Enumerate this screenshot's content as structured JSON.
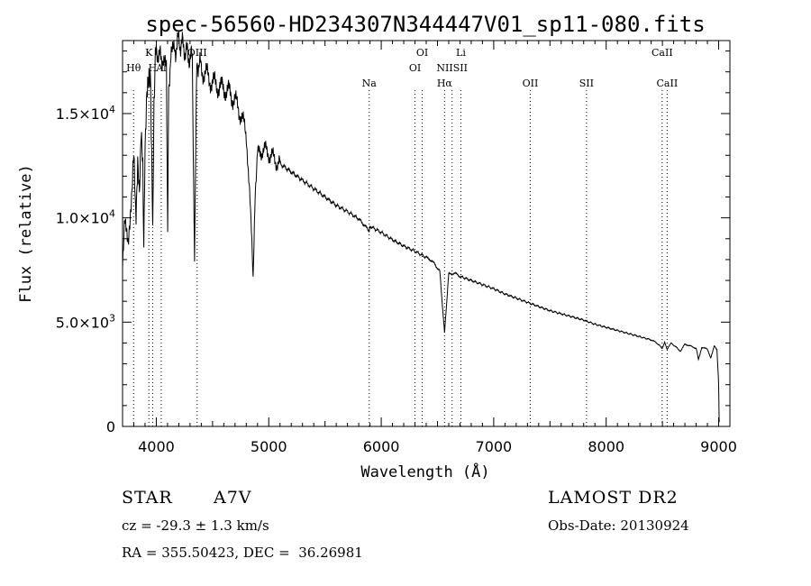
{
  "chart_data": {
    "type": "line",
    "title": "spec-56560-HD234307N344447V01_sp11-080.fits",
    "xlabel": "Wavelength (Å)",
    "ylabel": "Flux (relative)",
    "xlim": [
      3700,
      9100
    ],
    "ylim": [
      0,
      18500
    ],
    "xticks": [
      4000,
      5000,
      6000,
      7000,
      8000,
      9000
    ],
    "xtick_labels": [
      "4000",
      "5000",
      "6000",
      "7000",
      "8000",
      "9000"
    ],
    "yticks": [
      0,
      5000,
      10000,
      15000
    ],
    "ytick_labels": [
      {
        "mantissa": "0",
        "exp": ""
      },
      {
        "mantissa": "5.0×10",
        "exp": "3"
      },
      {
        "mantissa": "1.0×10",
        "exp": "4"
      },
      {
        "mantissa": "1.5×10",
        "exp": "4"
      }
    ],
    "grid": false,
    "series": [
      {
        "values": [
          [
            3700,
            8200
          ],
          [
            3720,
            9500
          ],
          [
            3750,
            8800
          ],
          [
            3780,
            11500
          ],
          [
            3800,
            12500
          ],
          [
            3820,
            10500
          ],
          [
            3835,
            13000
          ],
          [
            3850,
            11000
          ],
          [
            3865,
            13500
          ],
          [
            3880,
            12000
          ],
          [
            3889,
            9000
          ],
          [
            3900,
            14000
          ],
          [
            3920,
            15500
          ],
          [
            3935,
            16500
          ],
          [
            3950,
            17000
          ],
          [
            3955,
            14000
          ],
          [
            3968,
            9500
          ],
          [
            3980,
            16000
          ],
          [
            4000,
            17800
          ],
          [
            4020,
            18000
          ],
          [
            4040,
            17500
          ],
          [
            4060,
            17800
          ],
          [
            4075,
            17600
          ],
          [
            4090,
            17000
          ],
          [
            4101,
            9000
          ],
          [
            4110,
            16500
          ],
          [
            4130,
            17500
          ],
          [
            4160,
            18000
          ],
          [
            4200,
            18500
          ],
          [
            4240,
            18200
          ],
          [
            4280,
            17800
          ],
          [
            4320,
            17600
          ],
          [
            4340,
            8000
          ],
          [
            4360,
            17500
          ],
          [
            4400,
            17200
          ],
          [
            4450,
            16800
          ],
          [
            4500,
            16500
          ],
          [
            4550,
            16300
          ],
          [
            4600,
            16200
          ],
          [
            4650,
            16000
          ],
          [
            4700,
            15600
          ],
          [
            4750,
            15000
          ],
          [
            4800,
            14000
          ],
          [
            4830,
            11500
          ],
          [
            4861,
            7000
          ],
          [
            4880,
            11500
          ],
          [
            4900,
            13000
          ],
          [
            4950,
            13300
          ],
          [
            5000,
            13100
          ],
          [
            5050,
            12800
          ],
          [
            5100,
            12600
          ],
          [
            5200,
            12200
          ],
          [
            5300,
            11800
          ],
          [
            5400,
            11400
          ],
          [
            5500,
            11000
          ],
          [
            5600,
            10600
          ],
          [
            5700,
            10300
          ],
          [
            5800,
            9950
          ],
          [
            5890,
            9400
          ],
          [
            5900,
            9600
          ],
          [
            6000,
            9300
          ],
          [
            6100,
            8950
          ],
          [
            6200,
            8650
          ],
          [
            6300,
            8400
          ],
          [
            6400,
            8100
          ],
          [
            6450,
            7950
          ],
          [
            6520,
            7450
          ],
          [
            6563,
            4500
          ],
          [
            6600,
            7300
          ],
          [
            6650,
            7350
          ],
          [
            6700,
            7200
          ],
          [
            6800,
            7000
          ],
          [
            6900,
            6800
          ],
          [
            7000,
            6600
          ],
          [
            7100,
            6350
          ],
          [
            7200,
            6150
          ],
          [
            7300,
            5950
          ],
          [
            7400,
            5750
          ],
          [
            7500,
            5550
          ],
          [
            7600,
            5400
          ],
          [
            7700,
            5250
          ],
          [
            7800,
            5100
          ],
          [
            7900,
            4900
          ],
          [
            8000,
            4750
          ],
          [
            8100,
            4600
          ],
          [
            8200,
            4450
          ],
          [
            8300,
            4300
          ],
          [
            8400,
            4150
          ],
          [
            8450,
            4000
          ],
          [
            8498,
            3750
          ],
          [
            8520,
            4050
          ],
          [
            8542,
            3700
          ],
          [
            8580,
            4000
          ],
          [
            8662,
            3600
          ],
          [
            8700,
            3950
          ],
          [
            8750,
            3850
          ],
          [
            8800,
            3750
          ],
          [
            8820,
            3200
          ],
          [
            8850,
            3800
          ],
          [
            8900,
            3700
          ],
          [
            8930,
            3300
          ],
          [
            8960,
            3850
          ],
          [
            8985,
            3700
          ],
          [
            9000,
            2000
          ],
          [
            9005,
            200
          ]
        ]
      }
    ],
    "annotations": [
      {
        "label": "Hθ",
        "x": 3798,
        "row": 2
      },
      {
        "label": "K",
        "x": 3934,
        "row": 1
      },
      {
        "label": "H",
        "x": 3968,
        "row": 2
      },
      {
        "label": "Al",
        "x": 4044,
        "row": 2
      },
      {
        "label": "OIII",
        "x": 4363,
        "row": 1
      },
      {
        "label": "Na",
        "x": 5893,
        "row": 3
      },
      {
        "label": "OI",
        "x": 6300,
        "row": 2
      },
      {
        "label": "OI",
        "x": 6364,
        "row": 1
      },
      {
        "label": "Hα",
        "x": 6563,
        "row": 3
      },
      {
        "label": "Li",
        "x": 6708,
        "row": 1
      },
      {
        "label": "NIISII",
        "x": 6630,
        "row": 2
      },
      {
        "label": "OII",
        "x": 7325,
        "row": 3
      },
      {
        "label": "SII",
        "x": 7825,
        "row": 3
      },
      {
        "label": "CaII",
        "x": 8498,
        "row": 1
      },
      {
        "label": "CaII",
        "x": 8542,
        "row": 3
      }
    ],
    "line_markers": [
      3798,
      3934,
      3968,
      4044,
      4363,
      5893,
      6300,
      6364,
      6563,
      6630,
      6708,
      7325,
      7825,
      8498,
      8542
    ]
  },
  "info": {
    "object_class": "STAR",
    "subclass": "A7V",
    "survey": "LAMOST DR2",
    "cz": "cz = -29.3 ± 1.3 km/s",
    "obs_date": "Obs-Date: 20130924",
    "radec": "RA = 355.50423, DEC =  36.26981"
  }
}
